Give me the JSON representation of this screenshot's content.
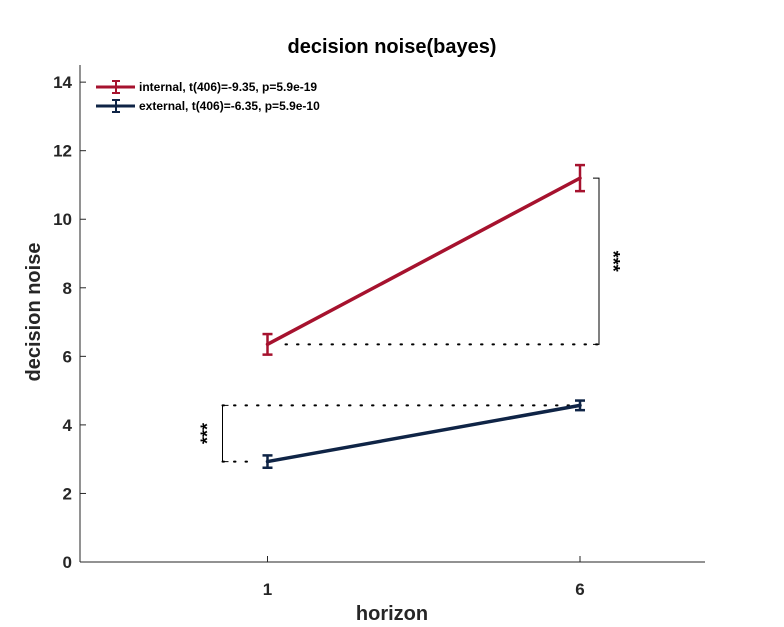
{
  "chart_data": {
    "type": "line",
    "title": "decision noise(bayes)",
    "xlabel": "horizon",
    "ylabel": "decision noise",
    "x": [
      1,
      6
    ],
    "xlim": [
      -2,
      8
    ],
    "ylim": [
      0,
      14.5
    ],
    "xticks": [
      "1",
      "6"
    ],
    "yticks": [
      "0",
      "2",
      "4",
      "6",
      "8",
      "10",
      "12",
      "14"
    ],
    "legend_position": "top-left",
    "grid": false,
    "series": [
      {
        "name": "internal, t(406)=-9.35, p=5.9e-19",
        "color": "#a6122e",
        "values": [
          6.35,
          11.2
        ],
        "errors": [
          0.3,
          0.38
        ]
      },
      {
        "name": "external, t(406)=-6.35, p=5.9e-10",
        "color": "#0f2446",
        "values": [
          2.93,
          4.57
        ],
        "errors": [
          0.18,
          0.14
        ]
      }
    ],
    "annotations": [
      {
        "text": "***",
        "series": 0,
        "between": "horizon 1 vs 6",
        "side": "right"
      },
      {
        "text": "***",
        "series": 1,
        "between": "horizon 1 vs 6",
        "side": "left"
      }
    ]
  }
}
